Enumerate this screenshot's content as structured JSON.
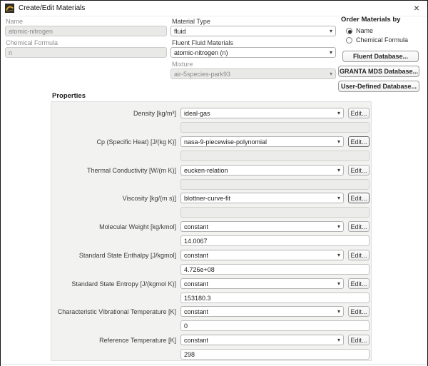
{
  "dialog": {
    "title": "Create/Edit Materials",
    "close_icon": "×"
  },
  "icons": {
    "dropdown_arrow": "▾",
    "app_icon": "fluent-logo"
  },
  "form": {
    "name": {
      "label": "Name",
      "value": "atomic-nitrogen"
    },
    "chemical_formula": {
      "label": "Chemical Formula",
      "value": "n"
    },
    "material_type": {
      "label": "Material Type",
      "value": "fluid"
    },
    "fluent_fluid_materials": {
      "label": "Fluent Fluid Materials",
      "value": "atomic-nitrogen (n)"
    },
    "mixture": {
      "label": "Mixture",
      "value": "air-5species-park93"
    }
  },
  "order_materials_by": {
    "title": "Order Materials by",
    "options": [
      {
        "label": "Name",
        "selected": true
      },
      {
        "label": "Chemical Formula",
        "selected": false
      }
    ]
  },
  "database_buttons": [
    {
      "label": "Fluent Database..."
    },
    {
      "label": "GRANTA MDS Database..."
    },
    {
      "label": "User-Defined Database..."
    }
  ],
  "properties": {
    "title": "Properties",
    "edit_label": "Edit...",
    "rows": [
      {
        "label": "Density [kg/m³]",
        "method": "ideal-gas",
        "value": "",
        "value_editable": false,
        "edit_focused": false
      },
      {
        "label": "Cp (Specific Heat) [J/(kg K)]",
        "method": "nasa-9-piecewise-polynomial",
        "value": "",
        "value_editable": false,
        "edit_focused": true
      },
      {
        "label": "Thermal Conductivity [W/(m K)]",
        "method": "eucken-relation",
        "value": "",
        "value_editable": false,
        "edit_focused": false
      },
      {
        "label": "Viscosity [kg/(m s)]",
        "method": "blottner-curve-fit",
        "value": "",
        "value_editable": false,
        "edit_focused": true
      },
      {
        "label": "Molecular Weight [kg/kmol]",
        "method": "constant",
        "value": "14.0067",
        "value_editable": true,
        "edit_focused": false
      },
      {
        "label": "Standard State Enthalpy [J/kgmol]",
        "method": "constant",
        "value": "4.726e+08",
        "value_editable": true,
        "edit_focused": false
      },
      {
        "label": "Standard State Entropy [J/(kgmol K)]",
        "method": "constant",
        "value": "153180.3",
        "value_editable": true,
        "edit_focused": false
      },
      {
        "label": "Characteristic Vibrational Temperature [K]",
        "method": "constant",
        "value": "0",
        "value_editable": true,
        "edit_focused": false
      },
      {
        "label": "Reference Temperature [K]",
        "method": "constant",
        "value": "298",
        "value_editable": true,
        "edit_focused": false
      }
    ]
  },
  "colors": {
    "dialog_bg": "#ffffff",
    "groupbox_bg": "#f2f2f1",
    "disabled_field_bg": "#e9e9e8",
    "focus_border": "#686868",
    "app_icon_dark": "#2e2a25",
    "app_icon_accent": "#d4a62a"
  }
}
